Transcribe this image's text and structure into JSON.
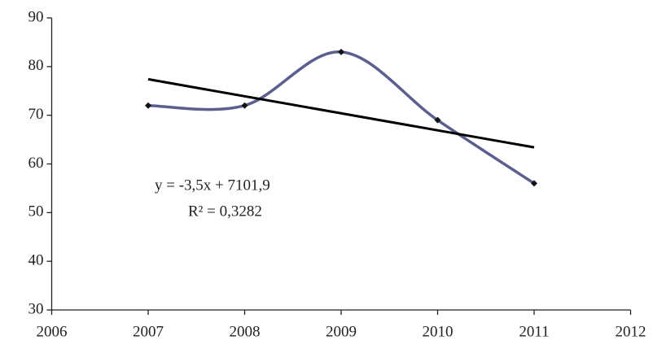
{
  "chart_data": {
    "type": "line",
    "x": [
      2007,
      2008,
      2009,
      2010,
      2011
    ],
    "series": [
      {
        "color": "#5b5f8e",
        "values": [
          72,
          72,
          83,
          69,
          56
        ]
      }
    ],
    "trendline": {
      "x": [
        2007,
        2011
      ],
      "values": [
        77.4,
        63.4
      ],
      "color": "#000000"
    },
    "annotations": [
      "y = -3,5x + 7101,9",
      "R² = 0,3282"
    ],
    "smooth": true,
    "xlim": [
      2006,
      2012
    ],
    "xticks": [
      2006,
      2007,
      2008,
      2009,
      2010,
      2011,
      2012
    ],
    "ylim": [
      30,
      90
    ],
    "yticks": [
      30,
      40,
      50,
      60,
      70,
      80,
      90
    ]
  }
}
